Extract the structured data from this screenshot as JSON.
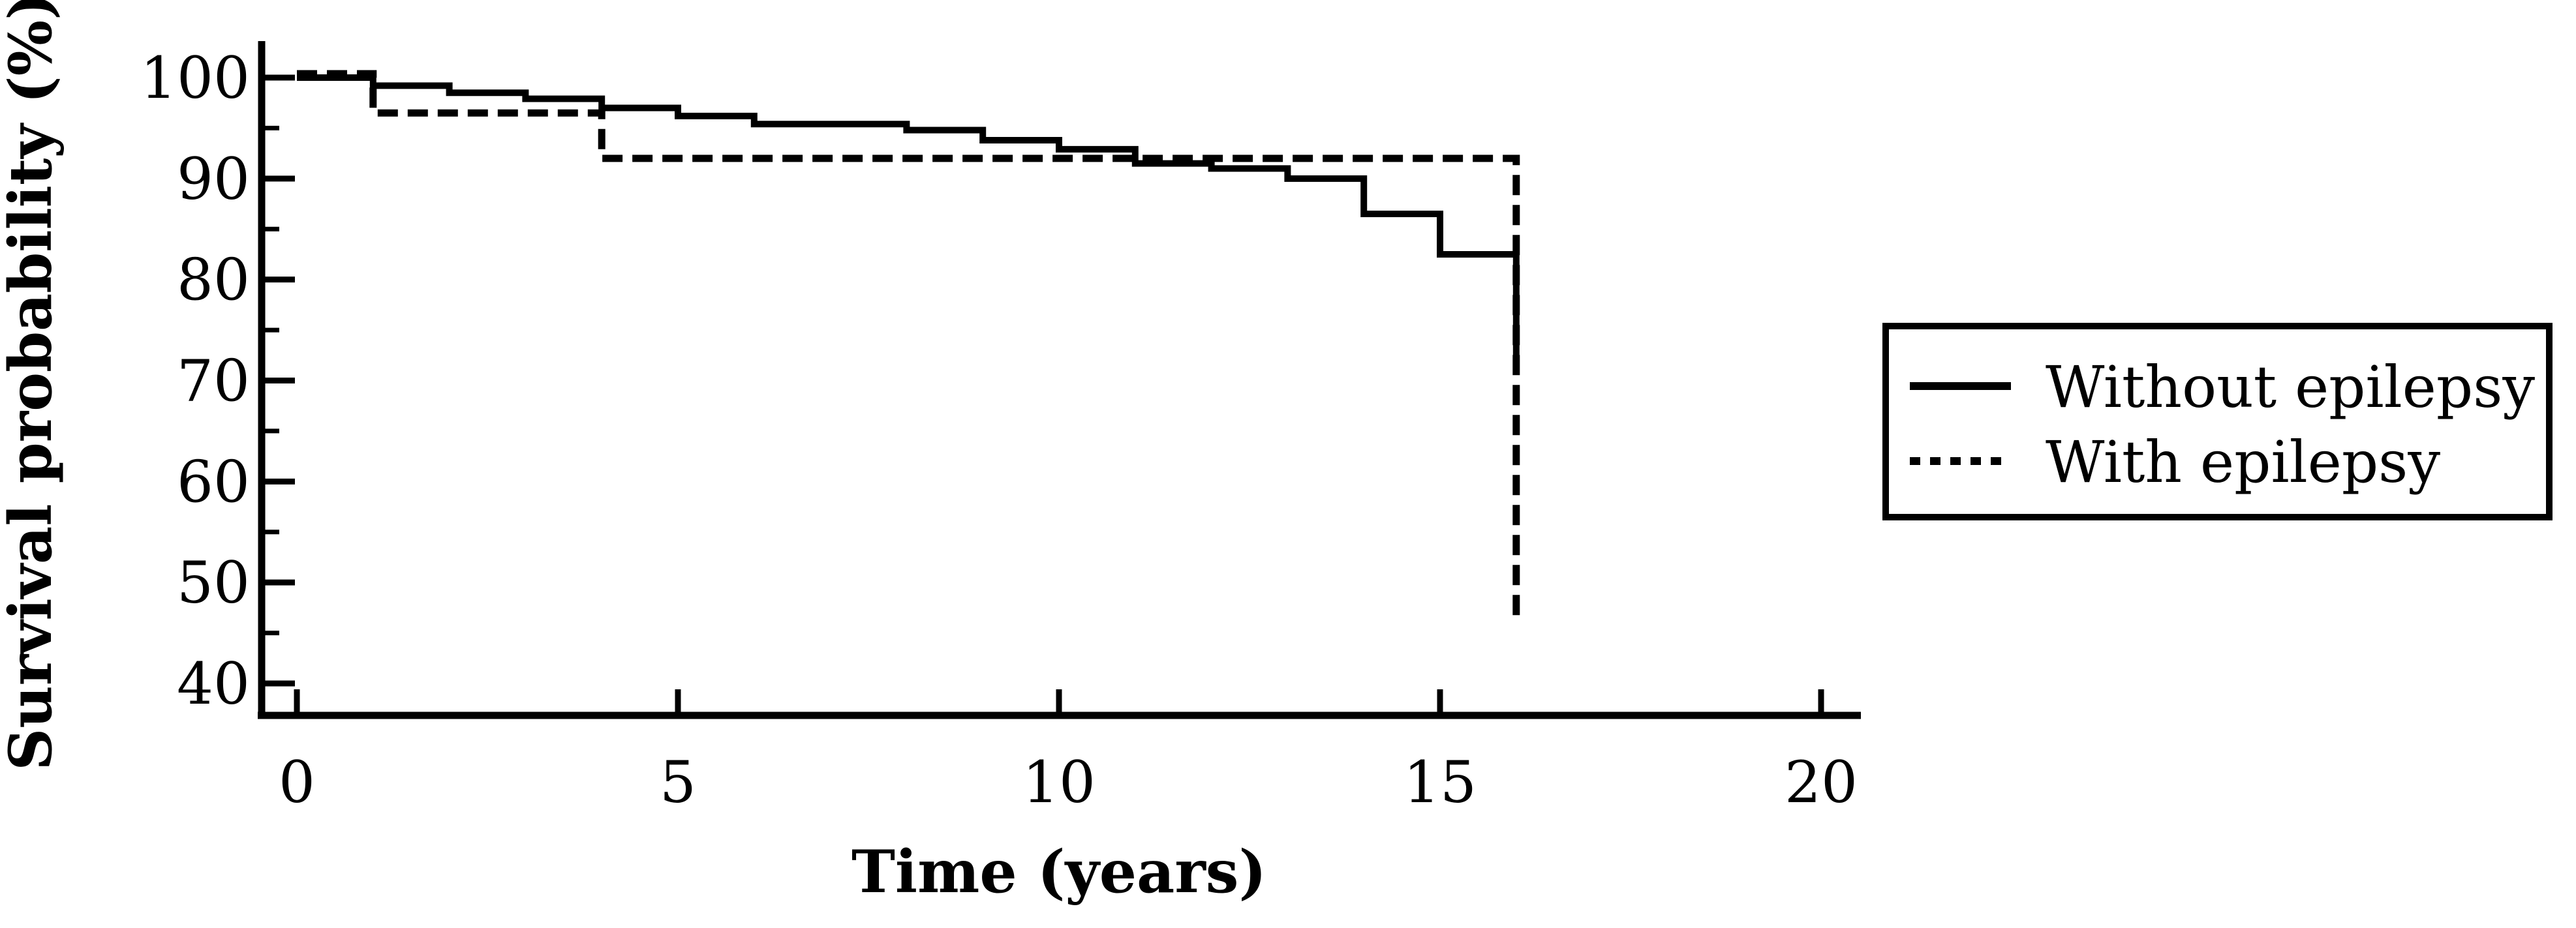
{
  "colors": {
    "line": "#000000",
    "background": "#ffffff"
  },
  "chart_data": {
    "type": "line",
    "subtype": "kaplan-meier-step-survival",
    "title": "",
    "xlabel": "Time (years)",
    "ylabel": "Survival probability (%)",
    "xlim": [
      0,
      20
    ],
    "ylim": [
      40,
      100
    ],
    "x_ticks": [
      0,
      5,
      10,
      15,
      20
    ],
    "y_ticks_major": [
      100,
      90,
      80,
      70,
      60,
      50,
      40
    ],
    "y_ticks_minor": [
      95,
      85,
      75,
      65,
      55,
      45
    ],
    "grid": false,
    "legend_position": "right-outside",
    "legend": {
      "entries": [
        {
          "label": "Without epilepsy",
          "line_style": "solid"
        },
        {
          "label": "With epilepsy",
          "line_style": "dashed"
        }
      ]
    },
    "series": [
      {
        "name": "Without epilepsy",
        "line_style": "solid",
        "steps": [
          [
            0,
            100
          ],
          [
            1,
            99.2
          ],
          [
            2,
            98.5
          ],
          [
            3,
            97.9
          ],
          [
            4,
            97.0
          ],
          [
            5,
            96.2
          ],
          [
            6,
            95.4
          ],
          [
            8,
            94.8
          ],
          [
            9,
            93.8
          ],
          [
            10,
            92.9
          ],
          [
            11,
            91.5
          ],
          [
            12,
            91.0
          ],
          [
            13,
            90.0
          ],
          [
            14,
            86.5
          ],
          [
            15,
            82.5
          ],
          [
            16,
            72.0
          ]
        ]
      },
      {
        "name": "With epilepsy",
        "line_style": "dashed",
        "steps": [
          [
            0,
            100
          ],
          [
            1,
            96.5
          ],
          [
            4,
            92.0
          ],
          [
            16,
            46.0
          ]
        ]
      }
    ]
  }
}
